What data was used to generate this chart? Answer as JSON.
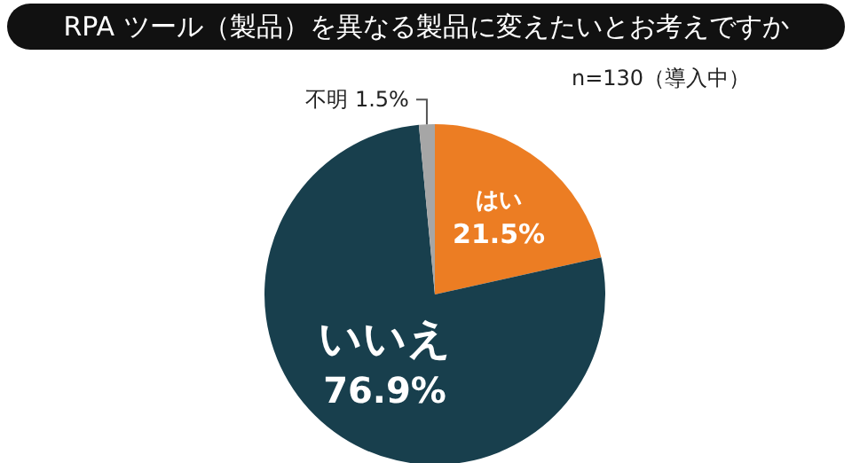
{
  "chart_data": {
    "type": "pie",
    "title": "RPA ツール（製品）を異なる製品に変えたいとお考えですか",
    "categories": [
      "はい",
      "いいえ",
      "不明"
    ],
    "values": [
      21.5,
      76.9,
      1.5
    ],
    "value_labels": [
      "21.5%",
      "76.9%",
      "1.5%"
    ],
    "colors": [
      "#ec7d23",
      "#183f4d",
      "#a6a6a6"
    ],
    "annotations": [
      "n=130（導入中）"
    ],
    "legend": false
  }
}
